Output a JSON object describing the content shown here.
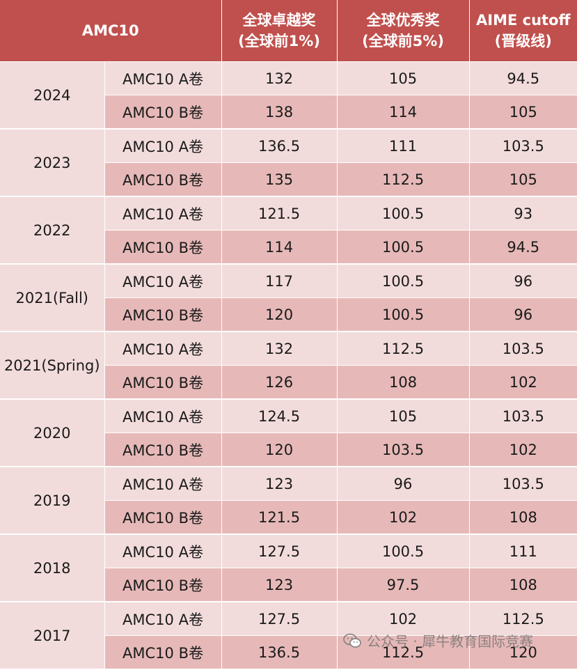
{
  "header": {
    "corner": "AMC10",
    "col_top1": [
      "全球卓越奖",
      "(全球前1%)"
    ],
    "col_top5": [
      "全球优秀奖",
      "(全球前5%)"
    ],
    "col_aime": [
      "AIME cutoff",
      "(晋级线)"
    ]
  },
  "years": [
    {
      "year": "2024",
      "rows": [
        {
          "paper": "AMC10 A卷",
          "top1": "132",
          "top5": "105",
          "aime": "94.5"
        },
        {
          "paper": "AMC10 B卷",
          "top1": "138",
          "top5": "114",
          "aime": "105"
        }
      ]
    },
    {
      "year": "2023",
      "rows": [
        {
          "paper": "AMC10 A卷",
          "top1": "136.5",
          "top5": "111",
          "aime": "103.5"
        },
        {
          "paper": "AMC10 B卷",
          "top1": "135",
          "top5": "112.5",
          "aime": "105"
        }
      ]
    },
    {
      "year": "2022",
      "rows": [
        {
          "paper": "AMC10 A卷",
          "top1": "121.5",
          "top5": "100.5",
          "aime": "93"
        },
        {
          "paper": "AMC10 B卷",
          "top1": "114",
          "top5": "100.5",
          "aime": "94.5"
        }
      ]
    },
    {
      "year": "2021(Fall)",
      "rows": [
        {
          "paper": "AMC10 A卷",
          "top1": "117",
          "top5": "100.5",
          "aime": "96"
        },
        {
          "paper": "AMC10 B卷",
          "top1": "120",
          "top5": "100.5",
          "aime": "96"
        }
      ]
    },
    {
      "year": "2021(Spring)",
      "rows": [
        {
          "paper": "AMC10 A卷",
          "top1": "132",
          "top5": "112.5",
          "aime": "103.5"
        },
        {
          "paper": "AMC10 B卷",
          "top1": "126",
          "top5": "108",
          "aime": "102"
        }
      ]
    },
    {
      "year": "2020",
      "rows": [
        {
          "paper": "AMC10 A卷",
          "top1": "124.5",
          "top5": "105",
          "aime": "103.5"
        },
        {
          "paper": "AMC10 B卷",
          "top1": "120",
          "top5": "103.5",
          "aime": "102"
        }
      ]
    },
    {
      "year": "2019",
      "rows": [
        {
          "paper": "AMC10 A卷",
          "top1": "123",
          "top5": "96",
          "aime": "103.5"
        },
        {
          "paper": "AMC10 B卷",
          "top1": "121.5",
          "top5": "102",
          "aime": "108"
        }
      ]
    },
    {
      "year": "2018",
      "rows": [
        {
          "paper": "AMC10 A卷",
          "top1": "127.5",
          "top5": "100.5",
          "aime": "111"
        },
        {
          "paper": "AMC10 B卷",
          "top1": "123",
          "top5": "97.5",
          "aime": "108"
        }
      ]
    },
    {
      "year": "2017",
      "rows": [
        {
          "paper": "AMC10 A卷",
          "top1": "127.5",
          "top5": "102",
          "aime": "112.5"
        },
        {
          "paper": "AMC10 B卷",
          "top1": "136.5",
          "top5": "112.5",
          "aime": "120"
        }
      ]
    }
  ],
  "watermark": {
    "text": "公众号 · 犀牛教育国际竞赛",
    "icon": "wechat-icon"
  },
  "colors": {
    "header_bg": "#c0504d",
    "row_light": "#f2dcdb",
    "row_dark": "#e6b9b8"
  }
}
